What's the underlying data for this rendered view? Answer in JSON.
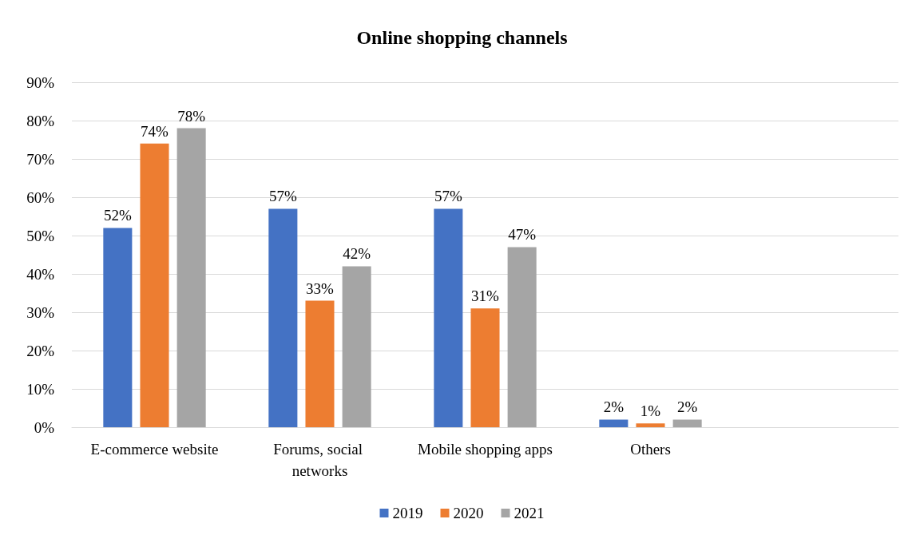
{
  "chart_data": {
    "type": "bar",
    "title": "Online shopping channels",
    "categories": [
      "E-commerce website",
      "Forums, social networks",
      "Mobile shopping apps",
      "Others",
      null
    ],
    "series": [
      {
        "name": "2019",
        "color": "#4472c4",
        "values": [
          52,
          57,
          57,
          2,
          null
        ],
        "value_labels": [
          "52%",
          "57%",
          "57%",
          "2%",
          null
        ]
      },
      {
        "name": "2020",
        "color": "#ed7d31",
        "values": [
          74,
          33,
          31,
          1,
          null
        ],
        "value_labels": [
          "74%",
          "33%",
          "31%",
          "1%",
          null
        ]
      },
      {
        "name": "2021",
        "color": "#a5a5a5",
        "values": [
          78,
          42,
          47,
          2,
          null
        ],
        "value_labels": [
          "78%",
          "42%",
          "47%",
          "2%",
          null
        ]
      }
    ],
    "ylim": [
      0,
      90
    ],
    "yticks": [
      {
        "value": 0,
        "label": "0%"
      },
      {
        "value": 10,
        "label": "10%"
      },
      {
        "value": 20,
        "label": "20%"
      },
      {
        "value": 30,
        "label": "30%"
      },
      {
        "value": 40,
        "label": "40%"
      },
      {
        "value": 50,
        "label": "50%"
      },
      {
        "value": 60,
        "label": "60%"
      },
      {
        "value": 70,
        "label": "70%"
      },
      {
        "value": 80,
        "label": "80%"
      },
      {
        "value": 90,
        "label": "90%"
      }
    ],
    "grid": "y",
    "legend": "bottom"
  }
}
